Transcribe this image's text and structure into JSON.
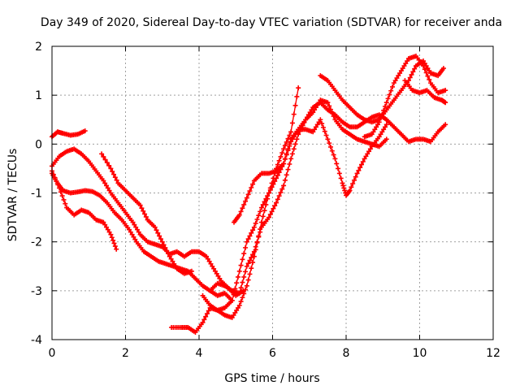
{
  "chart_data": {
    "type": "scatter",
    "title": "Day 349 of 2020, Sidereal Day-to-day VTEC variation (SDTVAR) for receiver anda",
    "xlabel": "GPS time / hours",
    "ylabel": "SDTVAR / TECUs",
    "xlim": [
      0,
      12
    ],
    "ylim": [
      -4,
      2
    ],
    "x_ticks": [
      "0",
      "2",
      "4",
      "6",
      "8",
      "10",
      "12"
    ],
    "y_ticks": [
      "-4",
      "-3",
      "-2",
      "-1",
      "0",
      "1",
      "2"
    ],
    "grid": true,
    "marker": "plus",
    "color": "#ff0000",
    "series": [
      {
        "x": [
          0.0,
          0.15,
          0.3,
          0.5,
          0.7,
          0.9
        ],
        "y": [
          0.15,
          0.25,
          0.22,
          0.18,
          0.2,
          0.27
        ]
      },
      {
        "x": [
          0.0,
          0.15,
          0.3,
          0.5,
          0.7,
          0.9,
          1.1,
          1.3,
          1.5,
          1.7,
          1.9,
          2.1,
          2.3,
          2.5,
          2.7,
          2.9,
          3.1,
          3.3,
          3.5,
          3.7,
          3.9,
          4.1,
          4.3,
          4.5,
          4.7,
          4.9
        ],
        "y": [
          -0.6,
          -0.8,
          -0.95,
          -1.0,
          -0.98,
          -0.95,
          -0.97,
          -1.05,
          -1.2,
          -1.4,
          -1.55,
          -1.75,
          -2.0,
          -2.2,
          -2.3,
          -2.4,
          -2.45,
          -2.5,
          -2.55,
          -2.6,
          -2.75,
          -2.9,
          -3.0,
          -3.1,
          -3.05,
          -3.2
        ]
      },
      {
        "x": [
          0.0,
          0.2,
          0.4,
          0.6,
          0.8,
          1.0,
          1.2,
          1.4,
          1.6,
          1.75
        ],
        "y": [
          -0.55,
          -0.9,
          -1.3,
          -1.45,
          -1.35,
          -1.4,
          -1.55,
          -1.6,
          -1.85,
          -2.15
        ]
      },
      {
        "x": [
          0.0,
          0.2,
          0.4,
          0.6,
          0.8,
          1.0,
          1.2,
          1.4,
          1.6,
          1.8,
          2.0,
          2.2,
          2.4,
          2.6,
          2.8,
          3.0,
          3.2,
          3.4,
          3.6,
          3.8,
          4.0,
          4.2,
          4.4,
          4.6,
          4.8,
          5.0,
          5.2
        ],
        "y": [
          -0.45,
          -0.25,
          -0.15,
          -0.1,
          -0.2,
          -0.35,
          -0.55,
          -0.75,
          -1.0,
          -1.2,
          -1.4,
          -1.6,
          -1.85,
          -2.0,
          -2.05,
          -2.1,
          -2.25,
          -2.2,
          -2.3,
          -2.2,
          -2.2,
          -2.3,
          -2.55,
          -2.8,
          -2.95,
          -3.1,
          -3.0
        ]
      },
      {
        "x": [
          1.35,
          1.6,
          1.8,
          2.0,
          2.2,
          2.4,
          2.6,
          2.8,
          3.0,
          3.2,
          3.4,
          3.6,
          3.8
        ],
        "y": [
          -0.2,
          -0.5,
          -0.8,
          -0.95,
          -1.1,
          -1.25,
          -1.55,
          -1.7,
          -2.0,
          -2.3,
          -2.55,
          -2.65,
          -2.6
        ]
      },
      {
        "x": [
          3.25,
          3.5,
          3.7,
          3.9,
          4.1,
          4.3,
          4.5,
          4.7,
          4.9,
          5.1,
          5.3,
          5.5,
          5.7,
          5.9,
          6.1,
          6.3,
          6.5,
          6.7
        ],
        "y": [
          -3.75,
          -3.75,
          -3.75,
          -3.85,
          -3.65,
          -3.35,
          -3.4,
          -3.5,
          -3.55,
          -3.3,
          -2.9,
          -2.3,
          -1.6,
          -1.0,
          -0.5,
          -0.1,
          0.25,
          1.15
        ]
      },
      {
        "x": [
          4.1,
          4.3,
          4.5,
          4.7,
          4.9,
          5.1,
          5.3,
          5.5,
          5.7,
          5.9,
          6.1,
          6.3,
          6.5,
          6.7,
          6.9,
          7.1,
          7.3,
          7.5,
          7.7,
          7.9,
          8.1,
          8.3,
          8.5,
          8.7,
          8.9,
          9.1
        ],
        "y": [
          -3.1,
          -3.3,
          -3.4,
          -3.35,
          -3.2,
          -2.6,
          -2.0,
          -1.7,
          -1.3,
          -1.0,
          -0.7,
          -0.4,
          0.05,
          0.3,
          0.5,
          0.65,
          0.9,
          0.85,
          0.5,
          0.3,
          0.2,
          0.1,
          0.05,
          0.0,
          -0.05,
          0.1
        ]
      },
      {
        "x": [
          4.3,
          4.5,
          4.7,
          4.9,
          5.1,
          5.3,
          5.5,
          5.7,
          5.9,
          6.1,
          6.3,
          6.5,
          6.7,
          6.9,
          7.1,
          7.3,
          7.5,
          7.7,
          7.9,
          8.1,
          8.3,
          8.5,
          8.7,
          8.9,
          9.1,
          9.3,
          9.5,
          9.7,
          9.9,
          10.1,
          10.3,
          10.5,
          10.7
        ],
        "y": [
          -3.0,
          -2.85,
          -2.9,
          -3.0,
          -3.05,
          -2.5,
          -2.2,
          -1.7,
          -1.5,
          -1.2,
          -0.85,
          -0.3,
          0.2,
          0.5,
          0.75,
          0.85,
          0.7,
          0.6,
          0.45,
          0.35,
          0.35,
          0.45,
          0.55,
          0.6,
          0.5,
          0.35,
          0.2,
          0.05,
          0.1,
          0.1,
          0.05,
          0.25,
          0.4
        ]
      },
      {
        "x": [
          4.95,
          5.1,
          5.3,
          5.5,
          5.7,
          5.9,
          6.1,
          6.3,
          6.5,
          6.7,
          6.9,
          7.1,
          7.3,
          7.5,
          7.7,
          7.9,
          8.0,
          8.1,
          8.3,
          8.5,
          8.7,
          8.9,
          9.1
        ],
        "y": [
          -1.6,
          -1.45,
          -1.1,
          -0.75,
          -0.6,
          -0.6,
          -0.55,
          -0.4,
          0.1,
          0.3,
          0.3,
          0.25,
          0.5,
          0.1,
          -0.3,
          -0.8,
          -1.05,
          -0.95,
          -0.6,
          -0.3,
          -0.05,
          0.15,
          0.4
        ]
      },
      {
        "x": [
          7.3,
          7.5,
          7.7,
          7.9,
          8.1,
          8.3,
          8.5,
          8.7,
          8.9,
          9.1,
          9.3,
          9.5,
          9.7,
          9.9,
          10.1,
          10.3,
          10.5,
          10.65
        ],
        "y": [
          1.4,
          1.3,
          1.1,
          0.9,
          0.75,
          0.6,
          0.5,
          0.45,
          0.5,
          0.7,
          0.9,
          1.1,
          1.3,
          1.6,
          1.7,
          1.45,
          1.4,
          1.55
        ]
      },
      {
        "x": [
          8.5,
          8.7,
          8.9,
          9.1,
          9.3,
          9.5,
          9.7,
          9.9,
          10.1,
          10.3,
          10.5,
          10.7
        ],
        "y": [
          0.15,
          0.2,
          0.45,
          0.85,
          1.25,
          1.5,
          1.75,
          1.8,
          1.6,
          1.25,
          1.05,
          1.1
        ]
      },
      {
        "x": [
          9.6,
          9.8,
          10.0,
          10.2,
          10.4,
          10.6,
          10.7
        ],
        "y": [
          1.3,
          1.1,
          1.05,
          1.1,
          0.95,
          0.9,
          0.85
        ]
      }
    ]
  }
}
